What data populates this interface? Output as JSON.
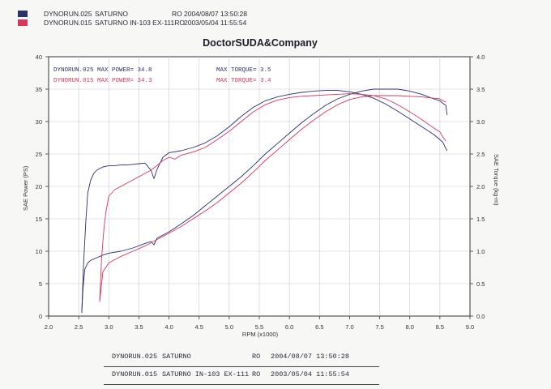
{
  "header": {
    "rows": [
      {
        "run": "DYNORUN.025",
        "name": "SATURNO",
        "type": "RO",
        "date": "2004/08/07 13:50:28"
      },
      {
        "run": "DYNORUN.015",
        "name": "SATURNO IN-103 EX-111RO",
        "type": "",
        "date": "2003/05/04 11:55:54"
      }
    ]
  },
  "footer": {
    "rows": [
      {
        "run": "DYNORUN.025",
        "name": "SATURNO",
        "type": "RO",
        "date": "2004/08/07 13:50:28"
      },
      {
        "run": "DYNORUN.015",
        "name": "SATURNO IN-103 EX-111",
        "type": "RO",
        "date": "2003/05/04 11:55:54"
      }
    ]
  },
  "chart_data": {
    "type": "line",
    "title": "DoctorSUDA&Company",
    "xlabel": "RPM (x1000)",
    "ylabel": "SAE Power (PS)",
    "y2label": "SAE Torque (kg-m)",
    "xlim": [
      2.0,
      9.0
    ],
    "ylim": [
      0,
      40
    ],
    "y2lim": [
      0.0,
      4.0
    ],
    "xticks": [
      "2.0",
      "2.5",
      "3.0",
      "3.5",
      "4.0",
      "4.5",
      "5.0",
      "5.5",
      "6.0",
      "6.5",
      "7.0",
      "7.5",
      "8.0",
      "8.5",
      "9.0"
    ],
    "yticks": [
      "0",
      "5",
      "10",
      "15",
      "20",
      "25",
      "30",
      "35",
      "40"
    ],
    "y2ticks": [
      "0.0",
      "0.5",
      "1.0",
      "1.5",
      "2.0",
      "2.5",
      "3.0",
      "3.5",
      "4.0"
    ],
    "grid": true,
    "annotations": [
      {
        "text": "DYNORUN.025  MAX POWER= 34.8",
        "series": "run025"
      },
      {
        "text": "DYNORUN.015  MAX POWER= 34.3",
        "series": "run015"
      },
      {
        "text": "MAX TORQUE= 3.5",
        "series": "run025"
      },
      {
        "text": "MAX TORQUE= 3.4",
        "series": "run015"
      }
    ],
    "colors": {
      "run025": "#2c2f70",
      "run015": "#d8365e"
    },
    "series": [
      {
        "id": "run025_torque",
        "axis": "right",
        "color": "#2c2f70",
        "x": [
          2.55,
          2.57,
          2.6,
          2.65,
          2.7,
          2.8,
          2.9,
          3.0,
          3.2,
          3.4,
          3.6,
          3.7,
          3.75,
          3.8,
          4.0,
          4.2,
          4.4,
          4.6,
          4.8,
          5.0,
          5.2,
          5.4,
          5.6,
          5.8,
          6.0,
          6.2,
          6.4,
          6.6,
          6.8,
          7.0,
          7.2,
          7.4,
          7.6,
          7.8,
          8.0,
          8.2,
          8.4,
          8.5,
          8.55,
          8.6,
          8.62
        ],
        "y": [
          0.05,
          0.4,
          0.72,
          0.82,
          0.86,
          0.9,
          0.94,
          0.97,
          1.0,
          1.05,
          1.12,
          1.15,
          1.1,
          1.2,
          1.3,
          1.42,
          1.55,
          1.7,
          1.85,
          2.0,
          2.15,
          2.32,
          2.5,
          2.66,
          2.82,
          2.98,
          3.12,
          3.25,
          3.35,
          3.42,
          3.47,
          3.5,
          3.5,
          3.5,
          3.47,
          3.42,
          3.35,
          3.32,
          3.28,
          3.25,
          3.1
        ]
      },
      {
        "id": "run015_torque",
        "axis": "right",
        "color": "#d8365e",
        "x": [
          2.85,
          2.88,
          2.9,
          2.95,
          3.0,
          3.2,
          3.4,
          3.6,
          3.8,
          4.0,
          4.2,
          4.4,
          4.6,
          4.8,
          5.0,
          5.2,
          5.4,
          5.6,
          5.8,
          6.0,
          6.2,
          6.4,
          6.6,
          6.8,
          7.0,
          7.2,
          7.4,
          7.6,
          7.8,
          8.0,
          8.2,
          8.4,
          8.5,
          8.55,
          8.6
        ],
        "y": [
          0.22,
          0.5,
          0.68,
          0.75,
          0.82,
          0.92,
          1.0,
          1.08,
          1.18,
          1.28,
          1.38,
          1.5,
          1.62,
          1.75,
          1.9,
          2.05,
          2.22,
          2.4,
          2.56,
          2.72,
          2.88,
          3.02,
          3.15,
          3.26,
          3.34,
          3.38,
          3.4,
          3.4,
          3.4,
          3.39,
          3.38,
          3.36,
          3.35,
          3.32,
          3.3
        ]
      },
      {
        "id": "run025_power",
        "axis": "left",
        "color": "#2c2f70",
        "x": [
          2.55,
          2.58,
          2.62,
          2.65,
          2.7,
          2.75,
          2.8,
          2.9,
          3.0,
          3.1,
          3.2,
          3.3,
          3.4,
          3.5,
          3.6,
          3.7,
          3.75,
          3.8,
          3.9,
          4.0,
          4.2,
          4.4,
          4.6,
          4.8,
          5.0,
          5.2,
          5.4,
          5.6,
          5.8,
          6.0,
          6.2,
          6.4,
          6.6,
          6.8,
          7.0,
          7.2,
          7.4,
          7.6,
          7.8,
          8.0,
          8.2,
          8.4,
          8.5,
          8.55,
          8.58,
          8.62
        ],
        "y": [
          0.5,
          8,
          15,
          19,
          21,
          22,
          22.5,
          23,
          23.2,
          23.2,
          23.3,
          23.3,
          23.4,
          23.5,
          23.6,
          22.5,
          21.2,
          22.6,
          24.5,
          25.2,
          25.5,
          26,
          26.7,
          27.8,
          29.2,
          30.8,
          32.2,
          33.2,
          33.8,
          34.2,
          34.5,
          34.7,
          34.8,
          34.8,
          34.6,
          34.2,
          33.6,
          32.7,
          31.6,
          30.4,
          29.2,
          28,
          27.2,
          26.8,
          26.2,
          25.5
        ]
      },
      {
        "id": "run015_power",
        "axis": "left",
        "color": "#d8365e",
        "x": [
          2.85,
          2.88,
          2.92,
          2.95,
          3.0,
          3.1,
          3.2,
          3.3,
          3.4,
          3.5,
          3.6,
          3.7,
          3.8,
          3.9,
          4.0,
          4.1,
          4.2,
          4.4,
          4.6,
          4.8,
          5.0,
          5.2,
          5.4,
          5.6,
          5.8,
          6.0,
          6.2,
          6.4,
          6.6,
          6.8,
          7.0,
          7.2,
          7.4,
          7.6,
          7.8,
          8.0,
          8.2,
          8.4,
          8.5,
          8.55,
          8.6
        ],
        "y": [
          2.5,
          9,
          13.5,
          16,
          18.5,
          19.5,
          20,
          20.5,
          21,
          21.5,
          22,
          22.5,
          23.2,
          24,
          24.5,
          24.2,
          24.8,
          25.3,
          26,
          27.2,
          28.5,
          30,
          31.5,
          32.6,
          33.3,
          33.7,
          33.9,
          34,
          34.1,
          34.2,
          34.3,
          34.2,
          34,
          33.5,
          32.6,
          31.5,
          30.3,
          29,
          28.4,
          27.6,
          27
        ]
      }
    ]
  }
}
